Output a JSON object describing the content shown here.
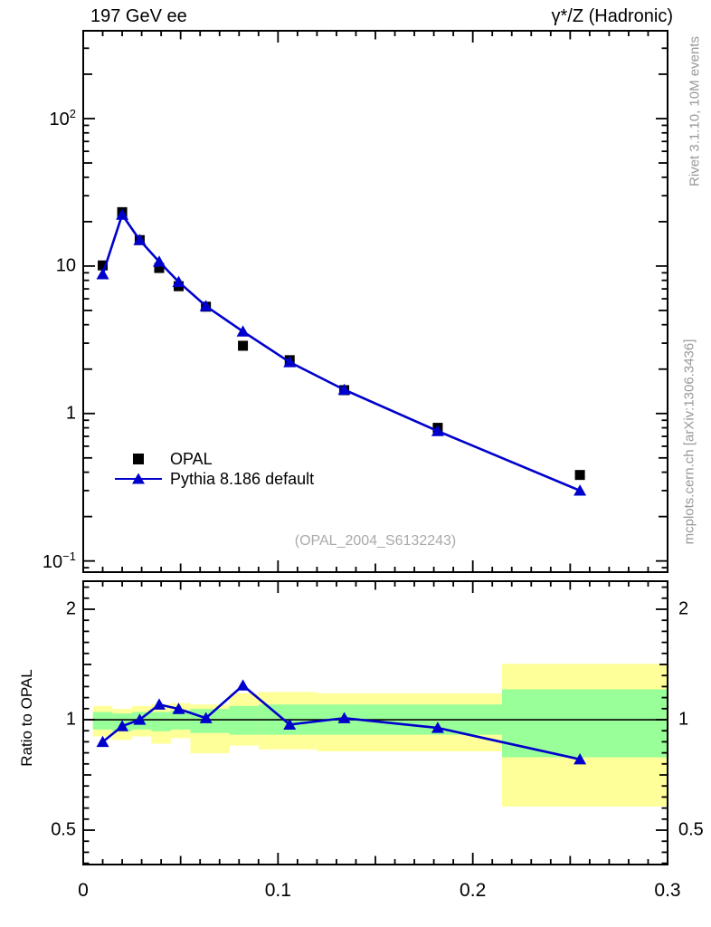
{
  "header": {
    "title_left": "197 GeV ee",
    "title_right": "γ*/Z (Hadronic)"
  },
  "side_notes": {
    "top": "Rivet 3.1.10,  10M events",
    "bottom": "mcplots.cern.ch [arXiv:1306.3436]"
  },
  "watermark": "(OPAL_2004_S6132243)",
  "legend": {
    "items": [
      {
        "label": "OPAL",
        "marker": "black-square"
      },
      {
        "label": "Pythia 8.186 default",
        "marker": "blue-triangle-line"
      }
    ]
  },
  "colors": {
    "data": "#000000",
    "mc": "#0000cd",
    "band_outer": "#ffff99",
    "band_inner": "#99ff99",
    "frame": "#000000",
    "muted": "#999999"
  },
  "chart_data": [
    {
      "id": "main",
      "type": "line",
      "y_scale": "log",
      "x_range": [
        0,
        0.3
      ],
      "y_range": [
        0.084,
        394
      ],
      "x_ticks": [
        0,
        0.1,
        0.2,
        0.3
      ],
      "x_tick_labels": [
        "0",
        "0.1",
        "0.2",
        "0.3"
      ],
      "y_tick_labels": [
        {
          "v": 100,
          "base": "10",
          "sup": "2"
        },
        {
          "v": 10,
          "base": "10",
          "sup": ""
        },
        {
          "v": 1,
          "base": "1",
          "sup": ""
        },
        {
          "v": 0.1,
          "base": "10",
          "sup": "−1"
        }
      ],
      "x": [
        0.01,
        0.02,
        0.029,
        0.039,
        0.049,
        0.063,
        0.082,
        0.106,
        0.134,
        0.182,
        0.255
      ],
      "series": [
        {
          "name": "OPAL",
          "marker": "square",
          "line": false,
          "values": [
            10.1,
            23.2,
            15.0,
            9.7,
            7.3,
            5.3,
            2.88,
            2.3,
            1.44,
            0.8,
            0.383
          ]
        },
        {
          "name": "Pythia 8.186 default",
          "marker": "triangle",
          "line": true,
          "values": [
            8.8,
            22.3,
            15.0,
            10.7,
            7.8,
            5.35,
            3.6,
            2.23,
            1.45,
            0.76,
            0.3
          ]
        }
      ]
    },
    {
      "id": "ratio",
      "type": "ratio",
      "ylabel": "Ratio to OPAL",
      "y_scale": "log",
      "x_range": [
        0,
        0.3
      ],
      "y_range": [
        0.403,
        2.385
      ],
      "reference_line": 1,
      "y_ticks": [
        {
          "v": 2,
          "label": "2"
        },
        {
          "v": 1,
          "label": "1"
        },
        {
          "v": 0.5,
          "label": "0.5"
        }
      ],
      "x_ticks": [
        0,
        0.1,
        0.2,
        0.3
      ],
      "x_tick_labels": [
        "0",
        "0.1",
        "0.2",
        "0.3"
      ],
      "bands": {
        "edges": [
          0.005,
          0.015,
          0.025,
          0.035,
          0.045,
          0.055,
          0.075,
          0.09,
          0.12,
          0.15,
          0.215,
          0.3
        ],
        "outer_hi": [
          1.09,
          1.07,
          1.09,
          1.1,
          1.11,
          1.1,
          1.18,
          1.19,
          1.18,
          1.18,
          1.42
        ],
        "outer_lo": [
          0.9,
          0.88,
          0.9,
          0.86,
          0.89,
          0.81,
          0.85,
          0.83,
          0.82,
          0.82,
          0.58
        ],
        "inner_hi": [
          1.05,
          1.04,
          1.05,
          1.05,
          1.06,
          1.07,
          1.09,
          1.1,
          1.1,
          1.1,
          1.21
        ],
        "inner_lo": [
          0.94,
          0.93,
          0.94,
          0.93,
          0.94,
          0.92,
          0.91,
          0.91,
          0.91,
          0.91,
          0.79
        ]
      },
      "x": [
        0.01,
        0.02,
        0.029,
        0.039,
        0.049,
        0.063,
        0.082,
        0.106,
        0.134,
        0.182,
        0.255
      ],
      "ratio_values": [
        0.87,
        0.96,
        1.0,
        1.1,
        1.07,
        1.01,
        1.24,
        0.97,
        1.01,
        0.95,
        0.78
      ]
    }
  ]
}
